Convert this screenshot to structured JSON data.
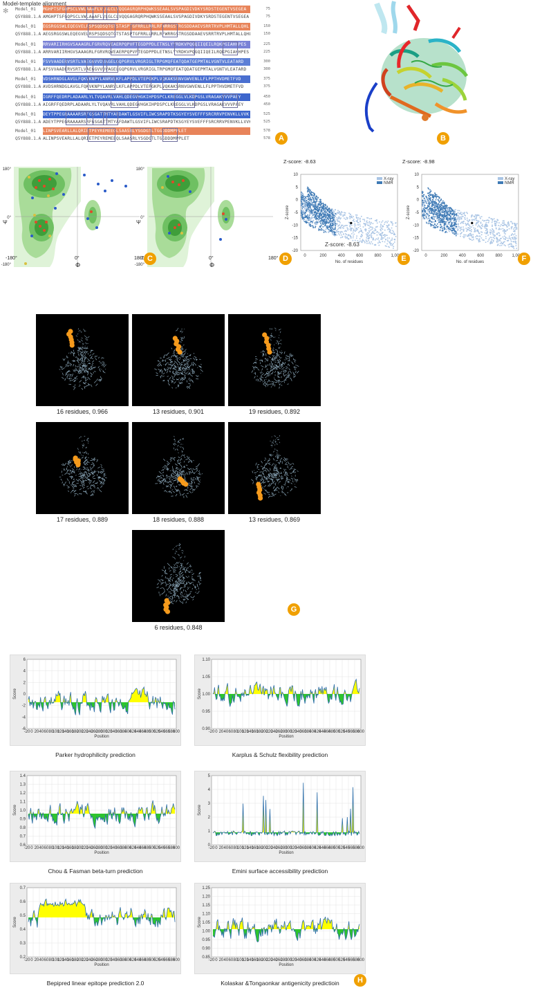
{
  "alignment": {
    "title": "Model-template alignment",
    "model_label": "Model_01",
    "template_label": "Q5Y888.1.A",
    "blocks": [
      {
        "model_seq": "MGHPTSFGQPSCLVWLAAAFLVLGLCLVQQGAGRQRPHQWKSSEAALSVSPAGDIVDKYSRDSTEGENTVSEGEA",
        "template_seq": "AMGHPTSFGQPSCLVWLAAAFLVLGLCLVQQGAGRQRPHQWKSSEAALSVSPAGDIVDKYSRDSTEGENTVSEGEA",
        "end": "75",
        "color": "#e8845a"
      },
      {
        "model_seq": "EGSRGGSWLEQEGVELRSPSQDSQTGTSTASPTGFRRLLRRLRFWRRGSTRGSDDAAEVSRRTRVPLHMTALLQHL",
        "template_seq": "AEGSRGGSWLEQEGVELRSPSQDSQTGTSTASPTGFRRLLRRLRFWRRGSTRGSDDAAEVSRRTRVPLHMTALLQHL",
        "end": "150",
        "color": "#e8845a"
      },
      {
        "model_seq": "RRVARIIRHGVSAAAGRLFGRVRQVEAERPQPVFTEGDPPDLETNSLYYRDKVPQGQIIQEILRQKPGIAHHPES",
        "template_seq": "ARRVARIIRHGVSAAAGRLFGRVRQVEAERPQPVFTEGDPPDLETNSLYYRDKVPQGQIIQEILRQKPGIAHHPES",
        "end": "225",
        "color": "#7a82d6"
      },
      {
        "model_seq": "FSVVAADERVSRTLVAEGGVVDVAGELGQPGRVLVRGRIGLTRPGMQFEATQDATGEPMTALVGNTVLEATARD",
        "template_seq": "AFSVVAADERVSRTLVAEGGVVDVAGELGQPGRVLVRGRIGLTRPGMQFEATQDATGEPMTALVGNTVLEATARD",
        "end": "300",
        "color": "#5d7fd6"
      },
      {
        "model_seq": "VDSHRNDGLAVGLFQKVKNPYLANRVLKFLAPPDLVTEPGKPLVQKAKSRNVGWVENLLFLPPTHVDMETFVD",
        "template_seq": "AVDSHRNDGLAVGLFQKVKNPYLANRVLKFLAPPDLVTEPGKPLVQKAKSRNVGWVENLLFLPPTHVDMETFVD",
        "end": "375",
        "color": "#4a6fd0"
      },
      {
        "model_seq": "IGRFFQEDRPLADAARLYLTVQAVRLVAHLQDEGVHGKIHPDSPCLKREGGLVLKDPGSLVRAGAKVVVPAEY",
        "template_seq": "AIGRFFQEDRPLADAARLYLTVQAVRLVAHLQDEGVHGKIHPDSPCLKREGGLVLKDPGSLVRAGAKVVVPAEY",
        "end": "450",
        "color": "#3d66cc"
      },
      {
        "model_seq": "DEYTPPEGRAAAARSRFGSGATTMTYAFDAWTLGSVIFLIWCSRAPDTKSGYEYSVEFFFSRCRRVPENVKLLVVK",
        "template_seq": "ADEYTPPEGRAAAARSRFGSGATTMTYAFDAWTLGSVIFLIWCSRAPDTKSGYEYSVEFFFSRCRRVPENVKLLVVK",
        "end": "525",
        "color": "#3d66cc"
      },
      {
        "model_seq": "LINPSVEARLLALQRIETPEYREMEEQLSAASRLYSGDGTLTGGDDDMPPLET",
        "template_seq": "ALINPSVEARLLALQRIETPEYREMEEQLSAASRLYSGDGTLTGGDDDMPPLET",
        "end": "578",
        "color": "#e8845a"
      }
    ]
  },
  "badges": {
    "a": "A",
    "b": "B",
    "c": "C",
    "d": "D",
    "e": "E",
    "f": "F",
    "g": "G",
    "h": "H"
  },
  "ramachandran": {
    "psi": "Ψ",
    "phi": "Φ",
    "y_top": "180°",
    "y_mid": "0°",
    "y_bottom": "-180°",
    "x_left": "-180°",
    "x_mid": "0°",
    "x_right": "180°"
  },
  "zscore": {
    "e_title": "Z-score: -8.63",
    "e_inner": "Z-score: -8.63",
    "f_title": "Z-score: -8.98",
    "ylabel": "Z-score",
    "xlabel": "No. of residues",
    "yticks": [
      "10",
      "5",
      "0",
      "-5",
      "-10",
      "-15",
      "-20"
    ],
    "xticks": [
      "0",
      "200",
      "400",
      "600",
      "800",
      "1,000"
    ],
    "legend": [
      "X-ray",
      "NMR"
    ]
  },
  "epitopes": [
    {
      "caption": "16 residues, 0.966"
    },
    {
      "caption": "13 residues, 0.901"
    },
    {
      "caption": "19 residues, 0.892"
    },
    {
      "caption": "17 residues, 0.889"
    },
    {
      "caption": "18 residues, 0.888"
    },
    {
      "caption": "13 residues, 0.869"
    },
    {
      "caption": "6 residues, 0.848"
    }
  ],
  "predictions": {
    "xlabel": "Position",
    "ylabel": "Score",
    "plots": [
      {
        "caption": "Parker hydrophilicity prediction",
        "yticks": [
          "6",
          "4",
          "2",
          "0",
          "-2",
          "-4",
          "-6"
        ],
        "threshold_frac": 0.62
      },
      {
        "caption": "Karplus & Schulz flexibility prediction",
        "yticks": [
          "1.10",
          "1.05",
          "1.00",
          "0.95",
          "0.90"
        ],
        "threshold_frac": 0.5
      },
      {
        "caption": "Chou & Fasman beta-turn prediction",
        "yticks": [
          "1.4",
          "1.3",
          "1.2",
          "1.1",
          "1.0",
          "0.9",
          "0.8",
          "0.7",
          "0.6"
        ],
        "threshold_frac": 0.55
      },
      {
        "caption": "Emini surface accessibility prediction",
        "yticks": [
          "5",
          "4",
          "3",
          "2",
          "1",
          "0"
        ],
        "threshold_frac": 0.82
      },
      {
        "caption": "Bepipred linear epitope prediction 2.0",
        "yticks": [
          "0.7",
          "0.6",
          "0.5",
          "0.4",
          "0.3",
          "0.2"
        ],
        "threshold_frac": 0.43
      },
      {
        "caption": "Kolaskar &Tongaonkar antigenicity predictioin",
        "yticks": [
          "1.25",
          "1.20",
          "1.15",
          "1.10",
          "1.05",
          "1.00",
          "0.95",
          "0.90",
          "0.85"
        ],
        "threshold_frac": 0.6
      }
    ],
    "xticks": [
      "-20",
      "0",
      "20",
      "40",
      "60",
      "80",
      "100",
      "120",
      "140",
      "160",
      "180",
      "200",
      "220",
      "240",
      "260",
      "280",
      "300",
      "320",
      "340",
      "360",
      "380",
      "400",
      "420",
      "440",
      "460",
      "480",
      "500",
      "520",
      "540",
      "560",
      "580",
      "600"
    ]
  },
  "colors": {
    "accent": "#f0a000",
    "xray": "#a9c4e4",
    "nmr": "#3f7ab5",
    "yellow": "#ffff00",
    "green": "#2ec42e",
    "line": "#2a6ca8"
  }
}
